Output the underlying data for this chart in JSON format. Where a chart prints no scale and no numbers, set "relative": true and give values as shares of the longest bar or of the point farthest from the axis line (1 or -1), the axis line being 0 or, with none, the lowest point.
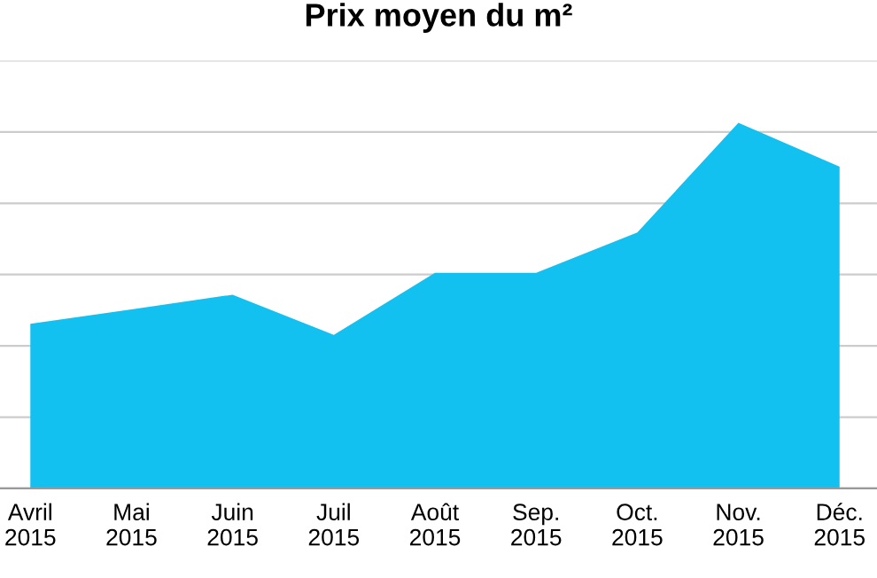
{
  "chart_data": {
    "type": "area",
    "title": "Prix moyen du m²",
    "categories": [
      "Avril\n2015",
      "Mai\n2015",
      "Juin\n2015",
      "Juil\n2015",
      "Août\n2015",
      "Sep.\n2015",
      "Oct.\n2015",
      "Nov.\n2015",
      "Déc.\n2015"
    ],
    "series": [
      {
        "color": "#12c1ef",
        "values": [
          0.45,
          0.49,
          0.53,
          0.42,
          0.59,
          0.59,
          0.7,
          1,
          0.88
        ]
      }
    ],
    "relative": true,
    "grid": "y",
    "legend": false
  }
}
